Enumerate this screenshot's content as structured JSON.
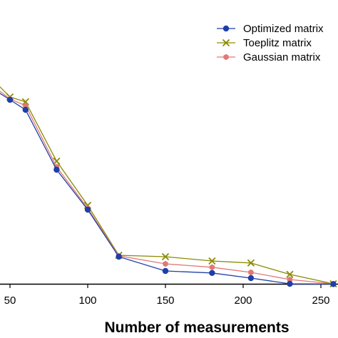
{
  "chart_data": {
    "type": "line",
    "title": "",
    "xlabel": "Number of measurements",
    "ylabel": "",
    "xlim": [
      40,
      258
    ],
    "ylim": [
      0,
      1
    ],
    "x_ticks": [
      50,
      100,
      150,
      200,
      250
    ],
    "grid": false,
    "legend_position": "top-right",
    "series": [
      {
        "name": "Optimized matrix",
        "color": "#1f3fa8",
        "marker": "circle",
        "x": [
          40,
          50,
          60,
          80,
          100,
          120,
          150,
          180,
          205,
          230,
          258
        ],
        "y": [
          0.73,
          0.695,
          0.66,
          0.45,
          0.31,
          0.145,
          0.095,
          0.088,
          0.07,
          0.05,
          0.049
        ]
      },
      {
        "name": "Toeplitz matrix",
        "color": "#8a8a00",
        "marker": "x",
        "x": [
          40,
          50,
          60,
          80,
          100,
          120,
          150,
          180,
          205,
          230,
          258
        ],
        "y": [
          0.76,
          0.705,
          0.688,
          0.48,
          0.325,
          0.15,
          0.145,
          0.13,
          0.123,
          0.083,
          0.05
        ]
      },
      {
        "name": "Gaussian matrix",
        "color": "#e07878",
        "marker": "hexagon",
        "x": [
          40,
          50,
          60,
          80,
          100,
          120,
          150,
          180,
          205,
          230,
          258
        ],
        "y": [
          0.74,
          0.698,
          0.675,
          0.46,
          0.315,
          0.148,
          0.12,
          0.108,
          0.09,
          0.065,
          0.05
        ]
      }
    ]
  }
}
